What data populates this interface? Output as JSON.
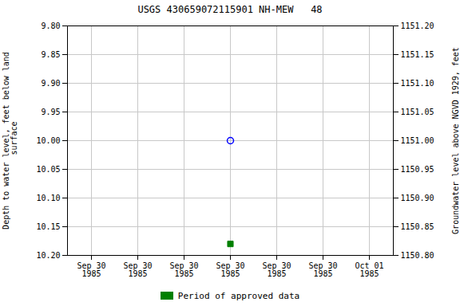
{
  "chart_data": {
    "type": "scatter",
    "title": "USGS 430659072115901 NH-MEW   48",
    "ylabel": "Depth to water level, feet below land\n surface",
    "y2label": "Groundwater level above NGVD 1929, feet",
    "categories": [
      "Sep 30\n1985",
      "Sep 30\n1985",
      "Sep 30\n1985",
      "Sep 30\n1985",
      "Sep 30\n1985",
      "Sep 30\n1985",
      "Oct 01\n1985"
    ],
    "ylim": [
      10.2,
      9.8
    ],
    "yticks": [
      {
        "value": 9.8,
        "label": "9.80"
      },
      {
        "value": 9.85,
        "label": "9.85"
      },
      {
        "value": 9.9,
        "label": "9.90"
      },
      {
        "value": 9.95,
        "label": "9.95"
      },
      {
        "value": 10.0,
        "label": "10.00"
      },
      {
        "value": 10.05,
        "label": "10.05"
      },
      {
        "value": 10.1,
        "label": "10.10"
      },
      {
        "value": 10.15,
        "label": "10.15"
      },
      {
        "value": 10.2,
        "label": "10.20"
      }
    ],
    "y2lim": [
      1150.8,
      1151.2
    ],
    "y2ticks": [
      {
        "value": 1150.8,
        "label": "1150.80"
      },
      {
        "value": 1150.85,
        "label": "1150.85"
      },
      {
        "value": 1150.9,
        "label": "1150.90"
      },
      {
        "value": 1150.95,
        "label": "1150.95"
      },
      {
        "value": 1151.0,
        "label": "1151.00"
      },
      {
        "value": 1151.05,
        "label": "1151.05"
      },
      {
        "value": 1151.1,
        "label": "1151.10"
      },
      {
        "value": 1151.15,
        "label": "1151.15"
      },
      {
        "value": 1151.2,
        "label": "1151.20"
      }
    ],
    "grid": true,
    "legend": "bottom",
    "series": [
      {
        "color": "#0000ff",
        "marker": "circle",
        "values": [
          null,
          null,
          null,
          10.0,
          null,
          null,
          null
        ]
      },
      {
        "name": "Period of approved data",
        "color": "#008000",
        "marker": "square",
        "values": [
          null,
          null,
          null,
          10.18,
          null,
          null,
          null
        ]
      }
    ]
  }
}
